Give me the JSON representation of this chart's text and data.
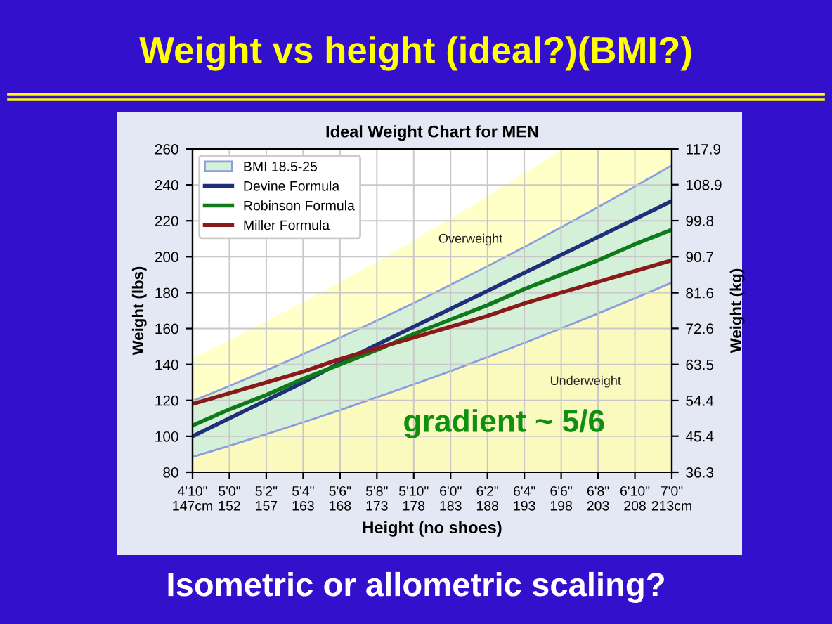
{
  "chart_data": {
    "type": "line",
    "title": "Weight vs height (ideal?)(BMI?)",
    "subtitle": "Ideal Weight Chart for MEN",
    "xlabel": "Height (no shoes)",
    "ylabel": "Weight (lbs)",
    "y2label": "Weight (kg)",
    "categories": [
      "4'10\"\n147cm",
      "5'0\"\n152",
      "5'2\"\n157",
      "5'4\"\n163",
      "5'6\"\n168",
      "5'8\"\n173",
      "5'10\"\n178",
      "6'0\"\n183",
      "6'2\"\n188",
      "6'4\"\n193",
      "6'6\"\n198",
      "6'8\"\n203",
      "6'10\"\n208",
      "7'0\"\n213cm"
    ],
    "ylim": [
      80,
      260
    ],
    "yticks": [
      80,
      100,
      120,
      140,
      160,
      180,
      200,
      220,
      240,
      260
    ],
    "y2lim": [
      36.3,
      117.9
    ],
    "y2ticks": [
      36.3,
      45.4,
      54.4,
      63.5,
      72.6,
      81.6,
      90.7,
      99.8,
      108.9,
      117.9
    ],
    "grid": true,
    "legend": "top left",
    "series": [
      {
        "type": "area",
        "color": "#ffffc8",
        "values": [
          143.6,
          153.6,
          164.0,
          174.8,
          185.9,
          197.3,
          209.1,
          221.2,
          233.7,
          246.5,
          259.6,
          260,
          260,
          260
        ]
      },
      {
        "type": "area",
        "name": "BMI 18.5-25",
        "color": "#d4f0d8",
        "values": [
          119.6,
          128.0,
          136.7,
          145.7,
          154.9,
          164.4,
          174.2,
          184.4,
          194.7,
          205.4,
          216.4,
          227.6,
          239.1,
          250.9
        ]
      },
      {
        "type": "area",
        "color": "#fafabe",
        "values": [
          88.5,
          94.7,
          101.2,
          107.8,
          114.6,
          121.7,
          128.9,
          136.3,
          144.1,
          152.0,
          160.1,
          168.4,
          176.9,
          185.6
        ]
      },
      {
        "color": "#8c9ce0",
        "values": [
          88.5,
          94.7,
          101.2,
          107.8,
          114.6,
          121.7,
          128.9,
          136.3,
          144.1,
          152.0,
          160.1,
          168.4,
          176.9,
          185.6
        ]
      },
      {
        "name": "Devine Formula",
        "color": "#1f2f7a",
        "values": [
          100,
          110,
          120,
          130,
          141,
          151,
          161,
          171,
          181,
          191,
          201,
          211,
          221,
          231
        ]
      },
      {
        "name": "Robinson Formula",
        "color": "#0f7a1a",
        "values": [
          106,
          115,
          123,
          132,
          140,
          148,
          157,
          165,
          173,
          182,
          190,
          198,
          207,
          215
        ]
      },
      {
        "name": "Miller Formula",
        "color": "#8a1a1a",
        "values": [
          118,
          124,
          130,
          136,
          143,
          149,
          155,
          161,
          167,
          174,
          180,
          186,
          192,
          198
        ]
      }
    ],
    "annotations": [
      "Overweight",
      "Underweight",
      "gradient ~ 5/6",
      "Isometric or allometric scaling?"
    ]
  }
}
